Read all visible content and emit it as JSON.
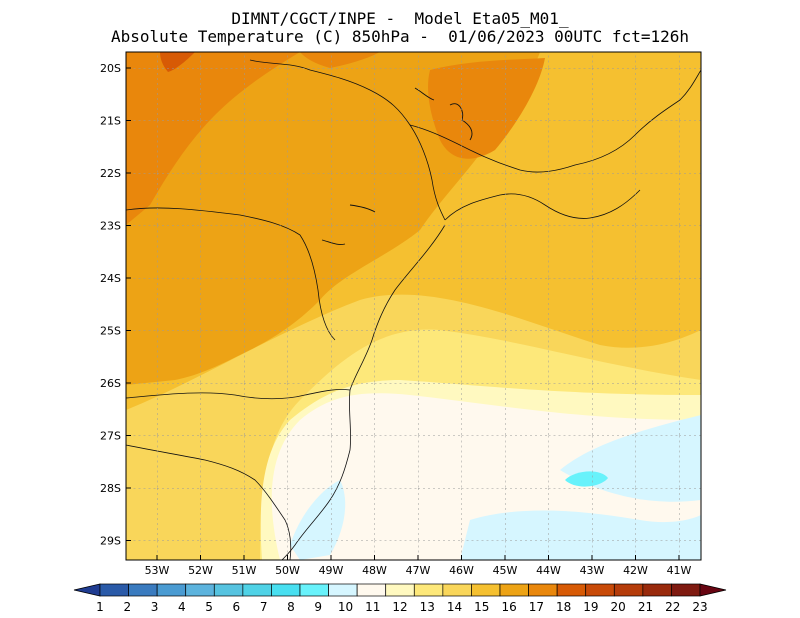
{
  "title": {
    "line1": "DIMNT/CGCT/INPE -  Model Eta05_M01_",
    "line2": "Absolute Temperature (C) 850hPa -  01/06/2023 00UTC fct=126h"
  },
  "map": {
    "lat_labels": [
      "20S",
      "21S",
      "22S",
      "23S",
      "24S",
      "25S",
      "26S",
      "27S",
      "28S",
      "29S"
    ],
    "lon_labels": [
      "53W",
      "52W",
      "51W",
      "50W",
      "49W",
      "48W",
      "47W",
      "46W",
      "45W",
      "44W",
      "43W",
      "42W",
      "41W"
    ]
  },
  "colorbar": {
    "labels": [
      "1",
      "2",
      "3",
      "4",
      "5",
      "6",
      "7",
      "8",
      "9",
      "10",
      "11",
      "12",
      "13",
      "14",
      "15",
      "16",
      "17",
      "18",
      "19",
      "20",
      "21",
      "22",
      "23"
    ],
    "colors": [
      "#1f3c91",
      "#2a5aa8",
      "#3a7bbf",
      "#4a9bd2",
      "#5cb3dd",
      "#56c3e0",
      "#4fd2e6",
      "#48dff0",
      "#68f2fb",
      "#d6f6ff",
      "#fff9ee",
      "#fff9c0",
      "#fde87a",
      "#f9d65a",
      "#f5c030",
      "#eda315",
      "#e9870c",
      "#d75a05",
      "#c84a08",
      "#b53c0a",
      "#992a0c",
      "#7f1a10",
      "#680512"
    ]
  }
}
